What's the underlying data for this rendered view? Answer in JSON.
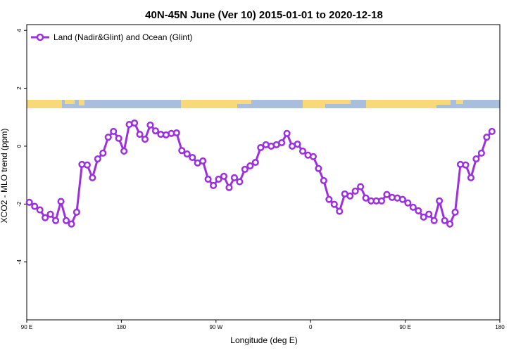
{
  "chart_data": {
    "type": "line",
    "title": "40N-45N June (Ver 10)   2015-01-01 to 2020-12-18",
    "xlabel": "Longitude (deg E)",
    "ylabel": "XCO2 - MLO trend (ppm)",
    "xlim": [
      90,
      540
    ],
    "ylim": [
      -6,
      4.2
    ],
    "xticks": [
      {
        "value": 90,
        "label": "90 E"
      },
      180,
      {
        "value": 270,
        "label": "90 W"
      },
      {
        "value": 360,
        "label": "0"
      },
      {
        "value": 450,
        "label": "90 E"
      },
      {
        "value": 540,
        "label": "180"
      }
    ],
    "yticks": [
      4,
      2,
      0,
      -2,
      -4
    ],
    "legend": "top-left",
    "x": [
      92.5,
      97.5,
      102.5,
      107.5,
      112.5,
      117.5,
      122.5,
      127.5,
      132.5,
      137.5,
      142.5,
      147.5,
      152.5,
      157.5,
      162.5,
      167.5,
      172.5,
      177.5,
      182.5,
      187.5,
      192.5,
      197.5,
      202.5,
      207.5,
      212.5,
      217.5,
      222.5,
      227.5,
      232.5,
      237.5,
      242.5,
      247.5,
      252.5,
      257.5,
      262.5,
      267.5,
      272.5,
      277.5,
      282.5,
      287.5,
      292.5,
      297.5,
      302.5,
      307.5,
      312.5,
      317.5,
      322.5,
      327.5,
      332.5,
      337.5,
      342.5,
      347.5,
      352.5,
      357.5,
      362.5,
      367.5,
      372.5,
      377.5,
      382.5,
      387.5,
      392.5,
      397.5,
      402.5,
      407.5,
      412.5,
      417.5,
      422.5,
      427.5,
      432.5,
      437.5,
      442.5,
      447.5,
      452.5,
      457.5,
      462.5,
      467.5,
      472.5,
      477.5,
      482.5,
      487.5,
      492.5,
      497.5,
      502.5,
      507.5,
      512.5,
      517.5,
      522.5,
      527.5,
      532.5
    ],
    "series": [
      {
        "name": "Land (Nadir&Glint) and Ocean (Glint)",
        "color": "#9b30e0",
        "values": [
          -1.94,
          -2.08,
          -2.2,
          -2.47,
          -2.35,
          -2.57,
          -1.91,
          -2.57,
          -2.69,
          -2.28,
          -0.63,
          -0.65,
          -1.09,
          -0.44,
          -0.24,
          0.31,
          0.51,
          0.27,
          -0.17,
          0.75,
          0.8,
          0.41,
          0.24,
          0.73,
          0.53,
          0.41,
          0.39,
          0.44,
          0.46,
          -0.15,
          -0.27,
          -0.39,
          -0.58,
          -0.51,
          -1.14,
          -1.36,
          -1.14,
          -1.04,
          -1.43,
          -1.09,
          -1.23,
          -0.8,
          -0.68,
          -0.56,
          -0.05,
          0.05,
          0,
          0.05,
          0.12,
          0.44,
          0,
          0.07,
          -0.17,
          -0.31,
          -0.36,
          -0.77,
          -1.19,
          -1.84,
          -2.01,
          -2.25,
          -1.65,
          -1.72,
          -1.55,
          -1.4,
          -1.79,
          -1.89,
          -1.89,
          -1.89,
          -1.67,
          -1.77,
          -1.79,
          -1.84,
          -1.96,
          -2.11,
          -2.23,
          -2.45,
          -2.35,
          -2.57,
          -1.89,
          -2.57,
          -2.69,
          -2.28,
          -0.63,
          -0.65,
          -1.09,
          -0.44,
          -0.24,
          0.31,
          0.51
        ]
      }
    ]
  }
}
